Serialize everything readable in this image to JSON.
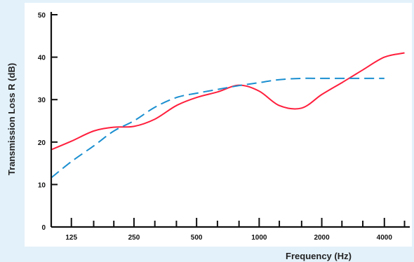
{
  "chart_data": {
    "type": "line",
    "xlabel": "Frequency (Hz)",
    "ylabel": "Transmission Loss R (dB)",
    "x_tick_labels": [
      "125",
      "250",
      "500",
      "1000",
      "2000",
      "4000"
    ],
    "y_tick_labels": [
      "0",
      "10",
      "20",
      "30",
      "40",
      "50"
    ],
    "y_ticks": [
      0,
      10,
      20,
      30,
      40,
      50
    ],
    "ylim": [
      0,
      50
    ],
    "x_scale": "log",
    "xlim": [
      100,
      5300
    ],
    "grid": false,
    "series": [
      {
        "style": "solid",
        "color": "#ff1f3d",
        "x": [
          100,
          125,
          160,
          200,
          250,
          315,
          400,
          500,
          630,
          800,
          1000,
          1250,
          1600,
          2000,
          2500,
          3150,
          4000,
          5000
        ],
        "y": [
          18.2,
          20.2,
          22.6,
          23.5,
          23.7,
          25.4,
          28.6,
          30.5,
          31.8,
          33.4,
          32.0,
          28.6,
          28.0,
          31.2,
          34.0,
          37.0,
          40.0,
          41.0
        ]
      },
      {
        "style": "dashed",
        "color": "#1b8fd0",
        "x": [
          100,
          125,
          160,
          200,
          250,
          315,
          400,
          500,
          630,
          800,
          1000,
          1250,
          1600,
          2000,
          2500,
          3150,
          4000
        ],
        "y": [
          11.6,
          15.4,
          19.1,
          22.6,
          25.0,
          28.2,
          30.5,
          31.5,
          32.4,
          33.3,
          34.0,
          34.7,
          35.0,
          35.0,
          35.0,
          35.0,
          35.0
        ]
      }
    ]
  }
}
